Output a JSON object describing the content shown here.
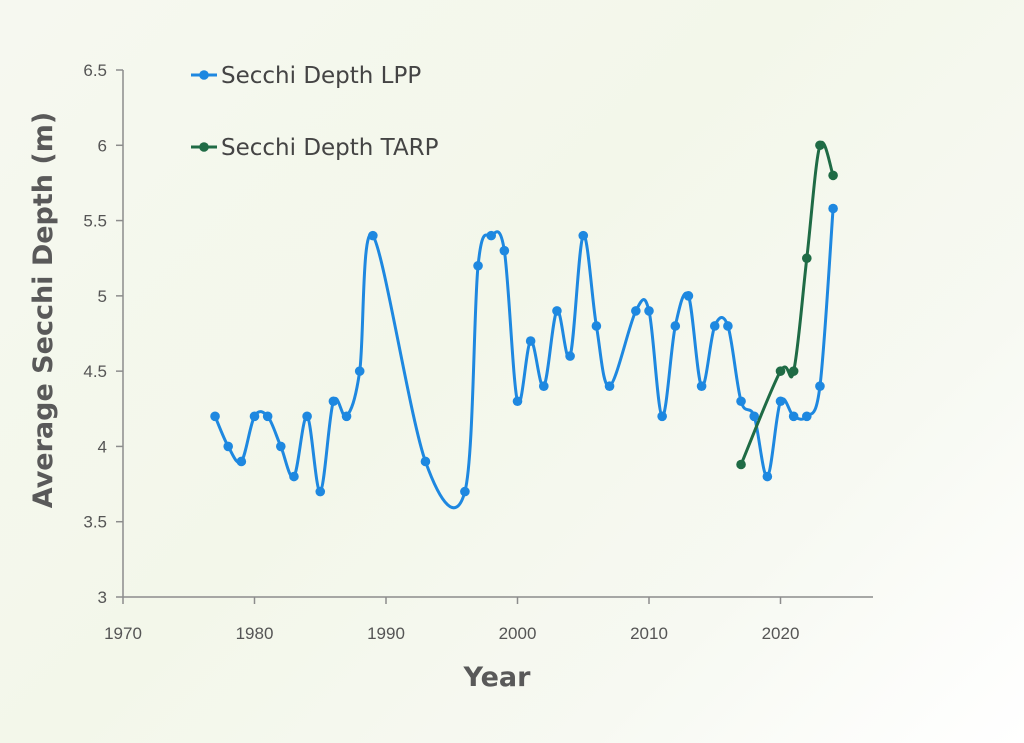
{
  "chart_data": {
    "type": "line",
    "title": "",
    "xlabel": "Year",
    "ylabel": "Average Secchi Depth (m)",
    "xlim": [
      1970,
      2026
    ],
    "ylim": [
      3,
      6.5
    ],
    "x_ticks": [
      1970,
      1980,
      1990,
      2000,
      2010,
      2020
    ],
    "y_ticks": [
      3,
      3.5,
      4,
      4.5,
      5,
      5.5,
      6,
      6.5
    ],
    "y_tick_labels": [
      "3",
      "3.5",
      "4",
      "4.5",
      "5",
      "5.5",
      "6",
      "6.5"
    ],
    "grid": false,
    "smooth": true,
    "legend_position": "top-left",
    "series": [
      {
        "name": "Secchi Depth LPP",
        "color": "#1e88e0",
        "points": [
          [
            1977,
            4.2
          ],
          [
            1978,
            4.0
          ],
          [
            1979,
            3.9
          ],
          [
            1980,
            4.2
          ],
          [
            1981,
            4.2
          ],
          [
            1982,
            4.0
          ],
          [
            1983,
            3.8
          ],
          [
            1984,
            4.2
          ],
          [
            1985,
            3.7
          ],
          [
            1986,
            4.3
          ],
          [
            1987,
            4.2
          ],
          [
            1988,
            4.5
          ],
          [
            1989,
            5.4
          ],
          [
            1993,
            3.9
          ],
          [
            1996,
            3.7
          ],
          [
            1997,
            5.2
          ],
          [
            1998,
            5.4
          ],
          [
            1999,
            5.3
          ],
          [
            2000,
            4.3
          ],
          [
            2001,
            4.7
          ],
          [
            2002,
            4.4
          ],
          [
            2003,
            4.9
          ],
          [
            2004,
            4.6
          ],
          [
            2005,
            5.4
          ],
          [
            2006,
            4.8
          ],
          [
            2007,
            4.4
          ],
          [
            2009,
            4.9
          ],
          [
            2010,
            4.9
          ],
          [
            2011,
            4.2
          ],
          [
            2012,
            4.8
          ],
          [
            2013,
            5.0
          ],
          [
            2014,
            4.4
          ],
          [
            2015,
            4.8
          ],
          [
            2016,
            4.8
          ],
          [
            2017,
            4.3
          ],
          [
            2018,
            4.2
          ],
          [
            2019,
            3.8
          ],
          [
            2020,
            4.3
          ],
          [
            2021,
            4.2
          ],
          [
            2022,
            4.2
          ],
          [
            2023,
            4.4
          ],
          [
            2024,
            5.58
          ]
        ]
      },
      {
        "name": "Secchi Depth TARP",
        "color": "#1f6b45",
        "points": [
          [
            2017,
            3.88
          ],
          [
            2020,
            4.5
          ],
          [
            2021,
            4.5
          ],
          [
            2022,
            5.25
          ],
          [
            2023,
            6.0
          ],
          [
            2024,
            5.8
          ]
        ]
      }
    ]
  }
}
